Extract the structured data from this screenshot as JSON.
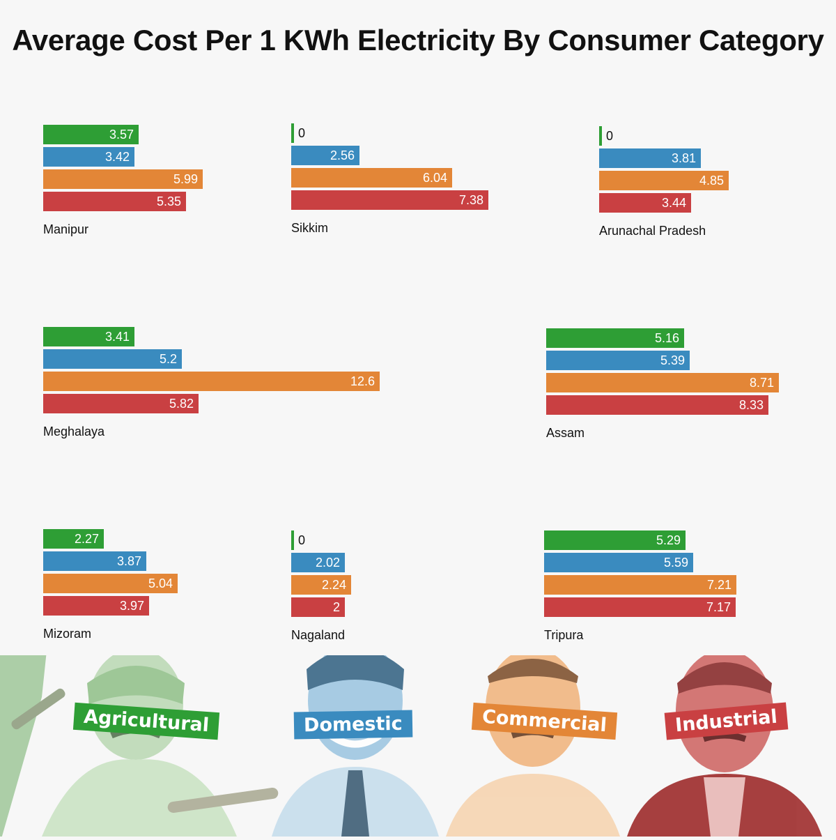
{
  "title": "Average Cost Per 1 KWh Electricity By Consumer Category",
  "colors": {
    "Agricultural": "#2e9e35",
    "Domestic": "#3a8bbf",
    "Commercial": "#e38637",
    "Industrial": "#c94042"
  },
  "legend": {
    "agricultural": "Agricultural",
    "domestic": "Domestic",
    "commercial": "Commercial",
    "industrial": "Industrial"
  },
  "chart_data": {
    "type": "bar",
    "orientation": "horizontal",
    "title": "Average Cost Per 1 KWh Electricity By Consumer Category",
    "categories": [
      "Agricultural",
      "Domestic",
      "Commercial",
      "Industrial"
    ],
    "panels": [
      {
        "state": "Manipur",
        "values": [
          3.57,
          3.42,
          5.99,
          5.35
        ]
      },
      {
        "state": "Sikkim",
        "values": [
          0,
          2.56,
          6.04,
          7.38
        ]
      },
      {
        "state": "Arunachal Pradesh",
        "values": [
          0,
          3.81,
          4.85,
          3.44
        ]
      },
      {
        "state": "Meghalaya",
        "values": [
          3.41,
          5.2,
          12.6,
          5.82
        ]
      },
      {
        "state": "Assam",
        "values": [
          5.16,
          5.39,
          8.71,
          8.33
        ]
      },
      {
        "state": "Mizoram",
        "values": [
          2.27,
          3.87,
          5.04,
          3.97
        ]
      },
      {
        "state": "Nagaland",
        "values": [
          0,
          2.02,
          2.24,
          2
        ]
      },
      {
        "state": "Tripura",
        "values": [
          5.29,
          5.59,
          7.21,
          7.17
        ]
      }
    ]
  }
}
